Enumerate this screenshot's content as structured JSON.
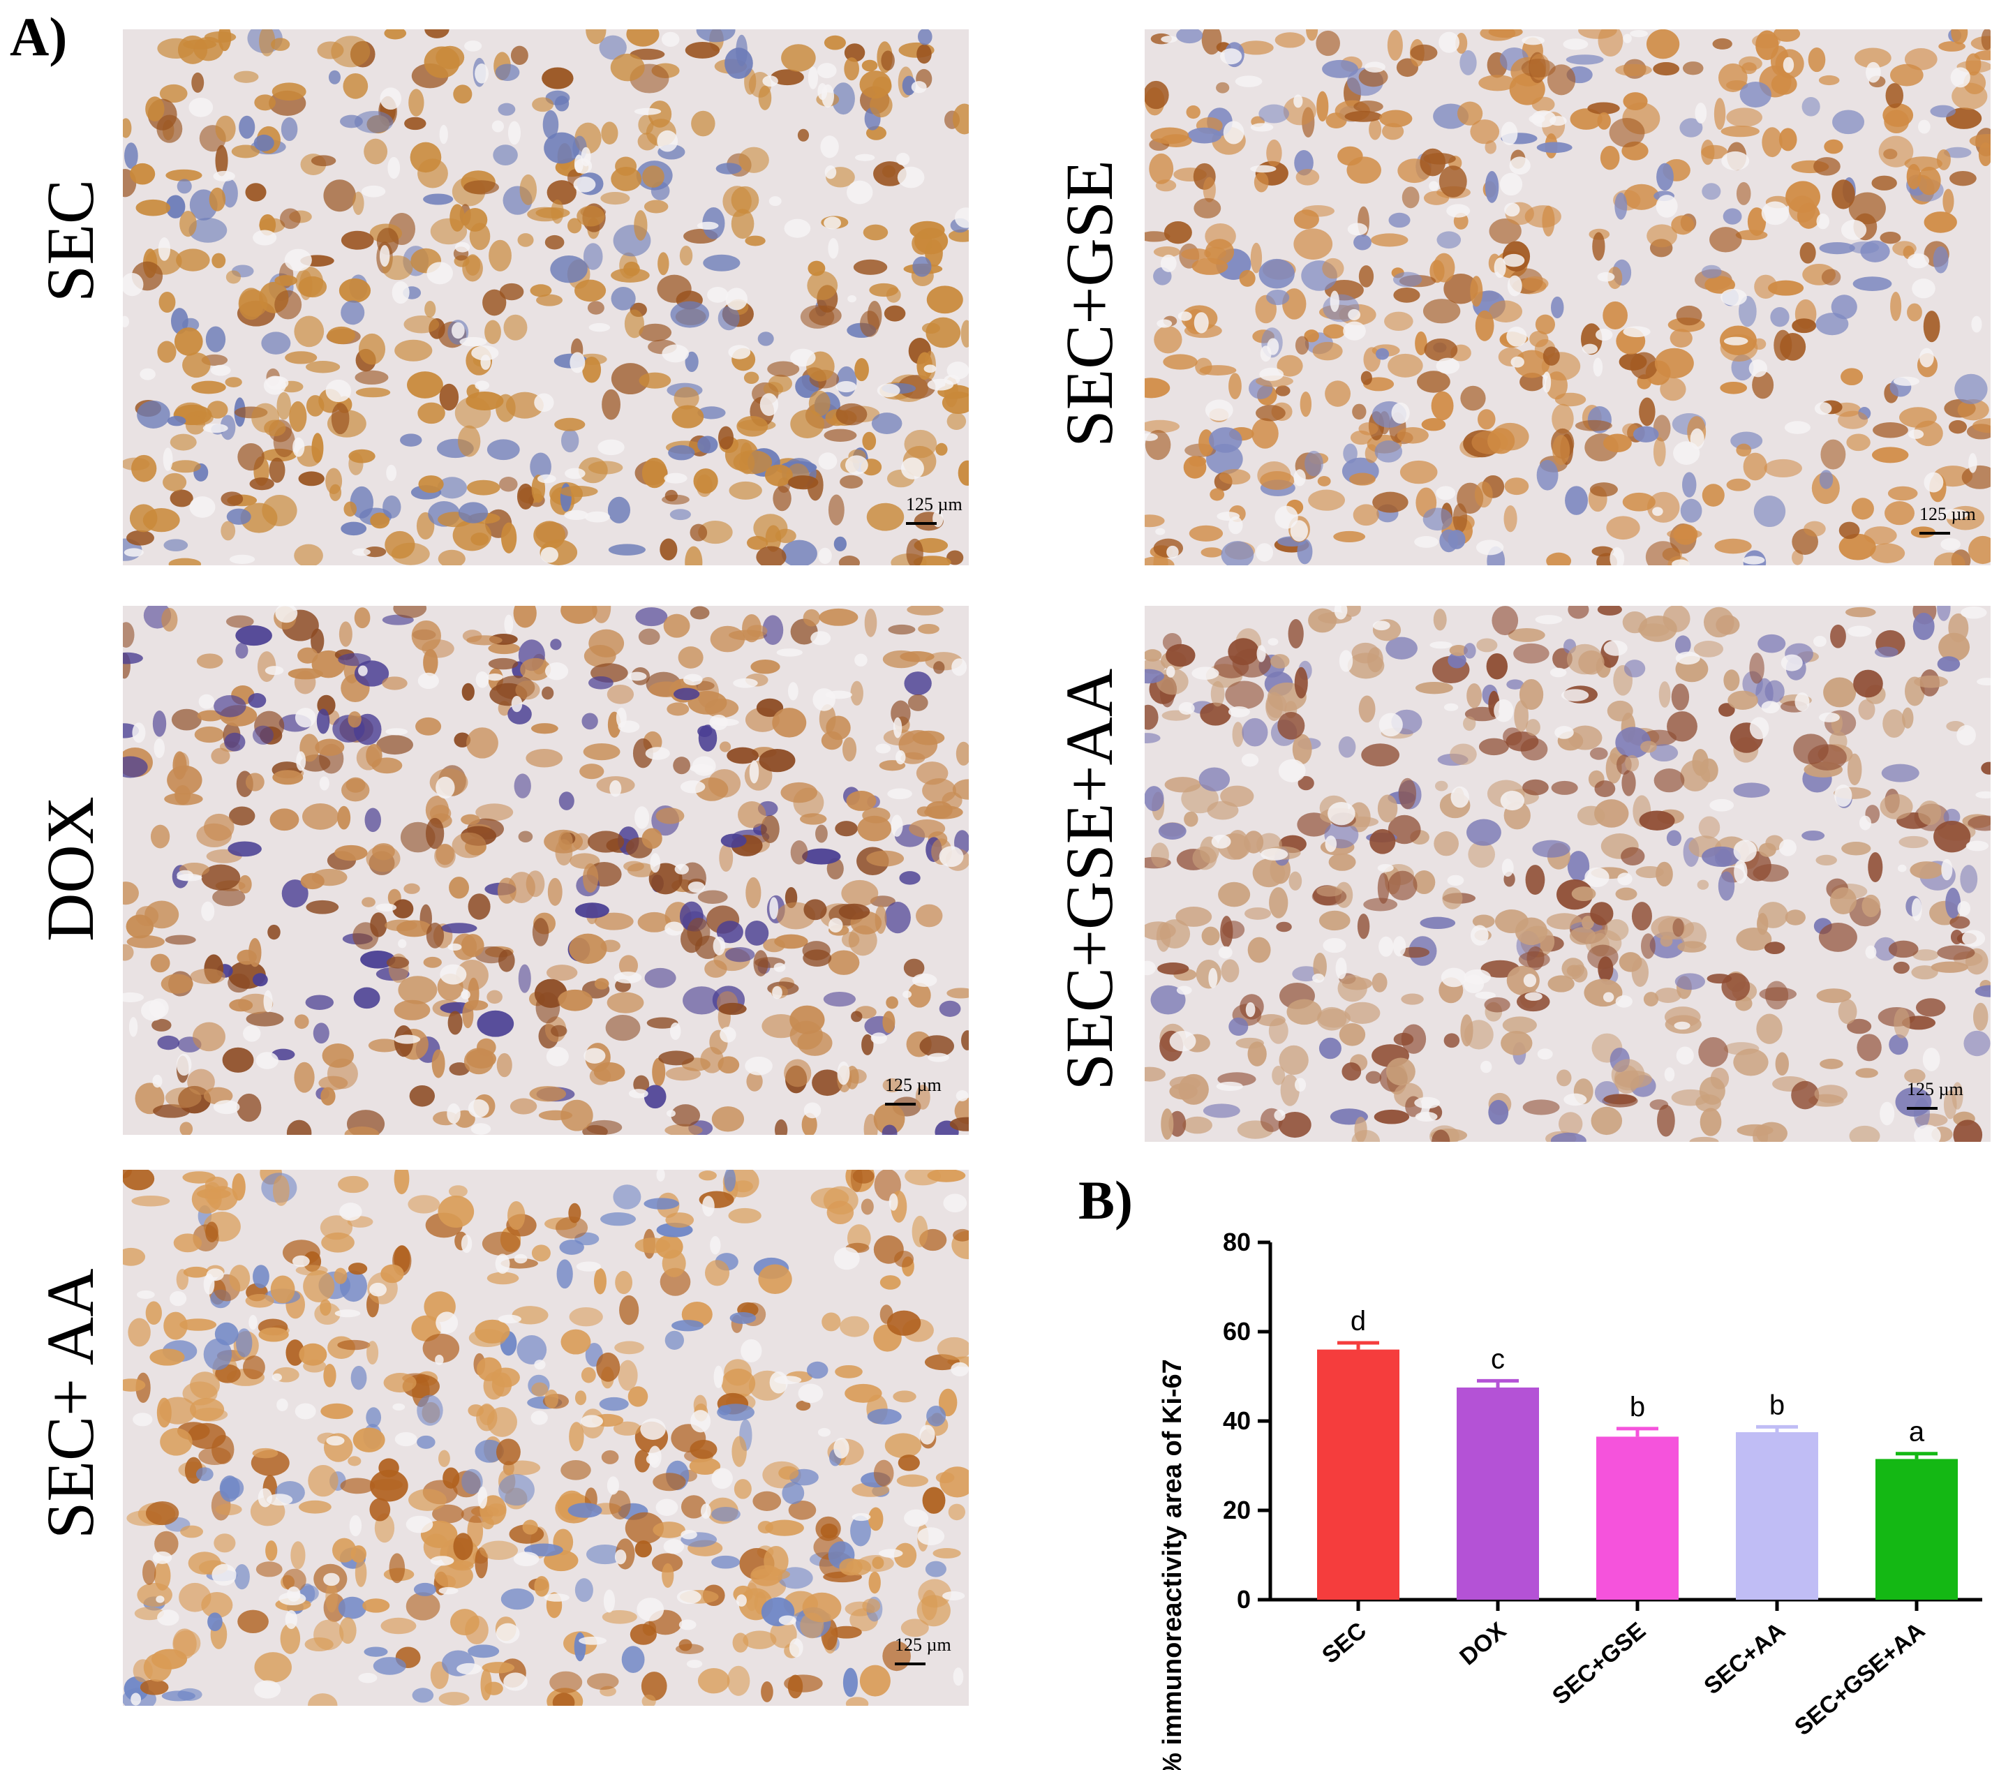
{
  "panel_a_label": "A)",
  "panel_b_label": "B)",
  "micrographs": [
    {
      "label": "SEC",
      "scale": "125 µm",
      "tone": [
        "#c9893a",
        "#9a5420",
        "#6b7bb8"
      ]
    },
    {
      "label": "SEC+GSE",
      "scale": "125 µm",
      "tone": [
        "#d08b44",
        "#a35a22",
        "#7d88c0"
      ]
    },
    {
      "label": "DOX",
      "scale": "125 µm",
      "tone": [
        "#c78b52",
        "#8c4a22",
        "#4a3f93"
      ]
    },
    {
      "label": "SEC+GSE+AA",
      "scale": "125 µm",
      "tone": [
        "#caa07c",
        "#8e4c32",
        "#7a79b5"
      ]
    },
    {
      "label": "SEC+ AA",
      "scale": "125 µm",
      "tone": [
        "#d99b55",
        "#b0611f",
        "#6f86c6"
      ]
    }
  ],
  "chart_data": {
    "type": "bar",
    "categories": [
      "SEC",
      "DOX",
      "SEC+GSE",
      "SEC+AA",
      "SEC+GSE+AA"
    ],
    "values": [
      56,
      47.5,
      36.5,
      37.5,
      31.5
    ],
    "errors": [
      1.5,
      1.5,
      1.8,
      1.2,
      1.2
    ],
    "significance": [
      "d",
      "c",
      "b",
      "b",
      "a"
    ],
    "colors": [
      "#f53d3d",
      "#b452d6",
      "#f553dc",
      "#c0bdf5",
      "#14b814"
    ],
    "ylabel": "% immunoreactivity area of Ki-67",
    "xlabel": "",
    "ylim": [
      0,
      80
    ],
    "yticks": [
      0,
      20,
      40,
      60,
      80
    ],
    "grid": false
  }
}
